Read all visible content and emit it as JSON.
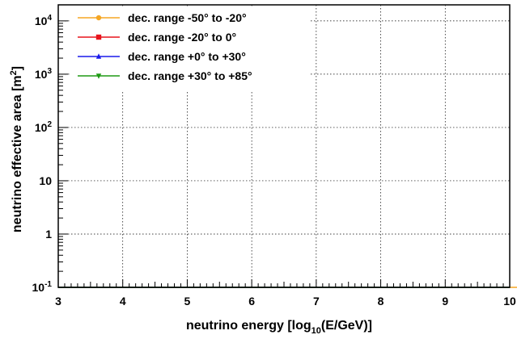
{
  "chart_data": {
    "type": "line",
    "xlabel_main": "neutrino energy [log",
    "xlabel_sub": "10",
    "xlabel_tail": "(E/GeV)]",
    "ylabel_main": "neutrino effective area [m",
    "ylabel_sup": "2",
    "ylabel_tail": "]",
    "xlim": [
      3,
      10
    ],
    "ylim": [
      0.1,
      20000
    ],
    "yscale": "log",
    "grid": true,
    "legend_position": "top-left",
    "x_ticks": [
      {
        "value": 3,
        "label": "3"
      },
      {
        "value": 4,
        "label": "4"
      },
      {
        "value": 5,
        "label": "5"
      },
      {
        "value": 6,
        "label": "6"
      },
      {
        "value": 7,
        "label": "7"
      },
      {
        "value": 8,
        "label": "8"
      },
      {
        "value": 9,
        "label": "9"
      },
      {
        "value": 10,
        "label": "10"
      }
    ],
    "y_ticks": [
      {
        "value": 0.1,
        "base": "10",
        "exp": "-1"
      },
      {
        "value": 1,
        "base": "1",
        "exp": ""
      },
      {
        "value": 10,
        "base": "10",
        "exp": ""
      },
      {
        "value": 100,
        "base": "10",
        "exp": "2"
      },
      {
        "value": 1000,
        "base": "10",
        "exp": "3"
      },
      {
        "value": 10000,
        "base": "10",
        "exp": "4"
      }
    ],
    "bin_width": 0.1,
    "series": [
      {
        "name": "dec. range -50° to -20°",
        "color": "#f5a623",
        "marker": "circle",
        "x_start": 3.0,
        "values": [
          0.1,
          0.1,
          0.1,
          0.1,
          0.1,
          0.1,
          0.1,
          0.1,
          0.1,
          0.1,
          0.1,
          0.1,
          0.1,
          0.1,
          0.1,
          0.1,
          0.1,
          0.1,
          0.1,
          0.1,
          0.1,
          0.1,
          0.1,
          0.1,
          0.1,
          0.1,
          0.1,
          0.1,
          0.1,
          0.1,
          0.1,
          0.1,
          0.1,
          0.1,
          0.1,
          0.1,
          0.1,
          0.1,
          0.1,
          0.1,
          0.1,
          0.1,
          0.1,
          0.1,
          0.1,
          0.1,
          0.1,
          0.1,
          0.1,
          0.1,
          0.1,
          0.1,
          0.1,
          0.1,
          0.1,
          0.1,
          0.1,
          0.1,
          0.1,
          0.1,
          0.1,
          0.1,
          0.1,
          0.1,
          0.1,
          0.1,
          0.1,
          0.1,
          0.1,
          0.1,
          0.1,
          0.1,
          0.1,
          0.1,
          0.1,
          0.1,
          0.1,
          0.1,
          0.1,
          0.1,
          0.1,
          0.1,
          0.1,
          0.1,
          0.1,
          0.1,
          0.1,
          0.1,
          0.1,
          0.1,
          0.1,
          0.1,
          0.1,
          0.1,
          0.1,
          0.1,
          0.1,
          0.1,
          0.1,
          0.1
        ]
      },
      {
        "name": "dec. range -20° to 0°",
        "color": "#e8141c",
        "marker": "square",
        "x_start": 3.0,
        "values": [
          0.1,
          0.1,
          0.1,
          0.1,
          0.1,
          0.1,
          0.1,
          0.1,
          0.1,
          0.1,
          0.1,
          0.1,
          0.1,
          0.1,
          0.1,
          0.1,
          0.1,
          0.1,
          0.1,
          0.1,
          0.1,
          0.1,
          0.1,
          0.1,
          0.1,
          0.1,
          0.1,
          0.1,
          0.1,
          0.1,
          0.1,
          0.1,
          0.1,
          0.1,
          0.1,
          0.1,
          0.1,
          0.1,
          0.1,
          0.1,
          0.1,
          0.1,
          0.1,
          0.1,
          0.1,
          0.1,
          0.1,
          0.1,
          0.1,
          0.1,
          0.1,
          0.1,
          0.1,
          0.1,
          0.1,
          0.1,
          0.1,
          0.1,
          0.1,
          0.1,
          0.1,
          0.1,
          0.1,
          0.1,
          0.1,
          0.1,
          0.1,
          0.1,
          0.1,
          0.1
        ]
      },
      {
        "name": "dec. range +0° to +30°",
        "color": "#1a1aeb",
        "marker": "triangle-up",
        "x_start": 3.0,
        "values": [
          0.1,
          0.1,
          0.1,
          0.1,
          0.1,
          0.1,
          0.1,
          0.1,
          0.1,
          0.1,
          0.1,
          0.1,
          0.1,
          0.1,
          0.1,
          0.1,
          0.1,
          0.1,
          0.1,
          0.1,
          0.1,
          0.1,
          0.1,
          0.1,
          0.1,
          0.1,
          0.1,
          0.1,
          0.1,
          0.1,
          0.1,
          0.1,
          0.1,
          0.1,
          0.1,
          0.1,
          0.1,
          0.1,
          0.1,
          0.1,
          0.1,
          0.1,
          0.1,
          0.1,
          0.1,
          0.1,
          0.1,
          0.1,
          0.1,
          0.1,
          0.1,
          0.1,
          0.1,
          0.1,
          0.1,
          0.1,
          0.1,
          0.1,
          0.1,
          0.1,
          0.1,
          0.1,
          0.1,
          0.1,
          0.1,
          0.1,
          0.1,
          0.1,
          0.1,
          0.1
        ]
      },
      {
        "name": "dec. range +30° to +85°",
        "color": "#1e9a14",
        "marker": "triangle-down",
        "x_start": 3.0,
        "values": [
          0.1,
          0.1,
          0.1,
          0.1,
          0.1,
          0.1,
          0.1,
          0.1,
          0.1,
          0.1,
          0.1,
          0.1,
          0.1,
          0.1,
          0.1,
          0.1,
          0.1,
          0.1,
          0.1,
          0.1,
          0.1,
          0.1,
          0.1,
          0.1,
          0.1,
          0.1,
          0.1,
          0.1,
          0.1,
          0.1,
          0.1,
          0.1,
          0.1,
          0.1,
          0.1,
          0.1,
          0.1,
          0.1,
          0.1,
          0.1,
          0.1,
          0.1,
          0.1,
          0.1,
          0.1,
          0.1,
          0.1,
          0.1,
          0.1,
          0.1,
          0.1,
          0.1,
          0.1,
          0.1,
          0.1,
          0.1,
          0.1,
          0.1,
          0.1,
          0.1,
          0.1,
          0.1,
          0.1,
          0.1,
          0.1,
          0.1,
          0.1,
          0.1,
          0.1,
          0.1
        ]
      }
    ]
  }
}
